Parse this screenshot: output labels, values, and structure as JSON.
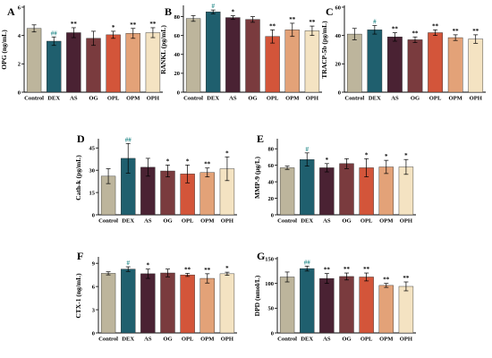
{
  "figure": {
    "categories": [
      "Control",
      "DEX",
      "AS",
      "OG",
      "OPL",
      "OPM",
      "OPH"
    ],
    "colors": [
      "#bdb59c",
      "#1f5f6e",
      "#4a2233",
      "#7a3b3e",
      "#d3553a",
      "#e3a278",
      "#f4e3c2"
    ],
    "sig_colors": {
      "##": "#2f8f8f",
      "#": "#2f8f8f",
      "**": "#000000",
      "*": "#000000"
    }
  },
  "chart_data": [
    {
      "type": "bar",
      "panel": "A",
      "ylabel": "OPG (ng/mL)",
      "categories": [
        "Control",
        "DEX",
        "AS",
        "OG",
        "OPL",
        "OPM",
        "OPH"
      ],
      "values": [
        4.5,
        3.6,
        4.2,
        3.8,
        4.05,
        4.15,
        4.2
      ],
      "errors": [
        0.25,
        0.3,
        0.35,
        0.5,
        0.25,
        0.35,
        0.35
      ],
      "significance": [
        "",
        "##",
        "**",
        "",
        "*",
        "**",
        "**"
      ],
      "ylim": [
        0,
        6
      ],
      "yticks": [
        0,
        2,
        4,
        6
      ]
    },
    {
      "type": "bar",
      "panel": "B",
      "ylabel": "RANKL (pg/mL)",
      "categories": [
        "Control",
        "DEX",
        "AS",
        "OG",
        "OPL",
        "OPM",
        "OPH"
      ],
      "values": [
        78,
        85,
        79,
        77,
        59,
        66,
        65
      ],
      "errors": [
        3,
        2,
        2,
        3,
        7,
        7,
        5
      ],
      "significance": [
        "",
        "#",
        "*",
        "",
        "**",
        "**",
        "**"
      ],
      "ylim": [
        0,
        90
      ],
      "yticks": [
        0,
        20,
        40,
        60,
        80
      ]
    },
    {
      "type": "bar",
      "panel": "C",
      "ylabel": "TRACP-5b (pg/mL)",
      "categories": [
        "Control",
        "DEX",
        "AS",
        "OG",
        "OPL",
        "OPM",
        "OPH"
      ],
      "values": [
        41,
        44,
        39,
        37,
        42,
        38.5,
        37.5
      ],
      "errors": [
        4,
        3,
        3,
        2,
        2,
        2,
        3
      ],
      "significance": [
        "",
        "#",
        "**",
        "**",
        "**",
        "**",
        "**"
      ],
      "ylim": [
        0,
        60
      ],
      "yticks": [
        0,
        20,
        40,
        60
      ]
    },
    {
      "type": "bar",
      "panel": "D",
      "ylabel": "Cath-k (pg/mL)",
      "categories": [
        "Control",
        "DEX",
        "AS",
        "OG",
        "OPL",
        "OPM",
        "OPH"
      ],
      "values": [
        26,
        38,
        32,
        29.5,
        27.5,
        28.5,
        31
      ],
      "errors": [
        5,
        10,
        6,
        4,
        6,
        3,
        8
      ],
      "significance": [
        "",
        "##",
        "",
        "*",
        "*",
        "**",
        "*"
      ],
      "ylim": [
        0,
        50
      ],
      "yticks": [
        0,
        15,
        30,
        45
      ]
    },
    {
      "type": "bar",
      "panel": "E",
      "ylabel": "MMP-9 (μg/L)",
      "categories": [
        "Control",
        "DEX",
        "AS",
        "OG",
        "OPL",
        "OPM",
        "OPH"
      ],
      "values": [
        57,
        67,
        57,
        62,
        57,
        58,
        58
      ],
      "errors": [
        2,
        8,
        5,
        6,
        11,
        8,
        9
      ],
      "significance": [
        "",
        "#",
        "*",
        "",
        "*",
        "*",
        "*"
      ],
      "ylim": [
        0,
        90
      ],
      "yticks": [
        0,
        20,
        40,
        60,
        80
      ]
    },
    {
      "type": "bar",
      "panel": "F",
      "ylabel": "CTX-1 (ng/mL)",
      "categories": [
        "Control",
        "DEX",
        "AS",
        "OG",
        "OPL",
        "OPM",
        "OPH"
      ],
      "values": [
        7.7,
        8.25,
        7.65,
        7.75,
        7.5,
        7.05,
        7.65
      ],
      "errors": [
        0.2,
        0.3,
        0.6,
        0.5,
        0.2,
        0.6,
        0.2
      ],
      "significance": [
        "",
        "#",
        "*",
        "",
        "**",
        "**",
        "*"
      ],
      "ylim": [
        0,
        9.6
      ],
      "yticks": [
        0,
        3,
        6,
        9
      ]
    },
    {
      "type": "bar",
      "panel": "G",
      "ylabel": "DPD (nmol/L)",
      "categories": [
        "Control",
        "DEX",
        "AS",
        "OG",
        "OPL",
        "OPM",
        "OPH"
      ],
      "values": [
        113,
        130,
        110,
        114,
        113,
        96,
        94
      ],
      "errors": [
        10,
        5,
        10,
        7,
        8,
        4,
        9
      ],
      "significance": [
        "",
        "##",
        "**",
        "**",
        "**",
        "**",
        "**"
      ],
      "ylim": [
        0,
        150
      ],
      "yticks": [
        0,
        50,
        100,
        150
      ]
    }
  ]
}
